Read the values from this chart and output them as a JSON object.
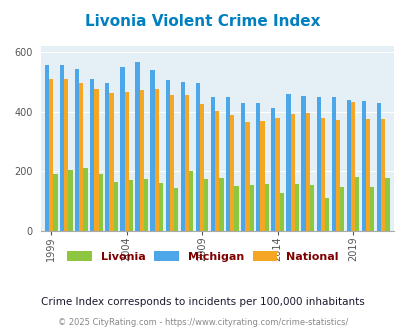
{
  "title": "Livonia Violent Crime Index",
  "subtitle": "Crime Index corresponds to incidents per 100,000 inhabitants",
  "copyright": "© 2025 CityRating.com - https://www.cityrating.com/crime-statistics/",
  "years": [
    1999,
    2000,
    2001,
    2002,
    2003,
    2004,
    2005,
    2006,
    2007,
    2008,
    2009,
    2010,
    2011,
    2012,
    2013,
    2014,
    2015,
    2016,
    2017,
    2018,
    2019,
    2020,
    2021
  ],
  "livonia": [
    190,
    205,
    210,
    190,
    165,
    170,
    175,
    160,
    145,
    200,
    175,
    178,
    150,
    155,
    158,
    128,
    158,
    153,
    112,
    148,
    180,
    148,
    178
  ],
  "michigan": [
    557,
    558,
    542,
    510,
    498,
    550,
    568,
    540,
    505,
    500,
    498,
    450,
    450,
    428,
    430,
    413,
    460,
    452,
    450,
    450,
    440,
    435,
    430
  ],
  "national": [
    510,
    510,
    498,
    475,
    463,
    465,
    473,
    475,
    455,
    455,
    425,
    402,
    388,
    365,
    368,
    378,
    394,
    397,
    378,
    371,
    434,
    375,
    375
  ],
  "livonia_color": "#8dc63f",
  "michigan_color": "#4da6e8",
  "national_color": "#f5a623",
  "background_color": "#e4f0f5",
  "title_color": "#0080c0",
  "legend_label_color": "#800000",
  "subtitle_color": "#1a1a2e",
  "copyright_color": "#888888",
  "ylim": [
    0,
    620
  ],
  "yticks": [
    0,
    200,
    400,
    600
  ],
  "xtick_years": [
    1999,
    2004,
    2009,
    2014,
    2019
  ],
  "bar_width": 0.28
}
